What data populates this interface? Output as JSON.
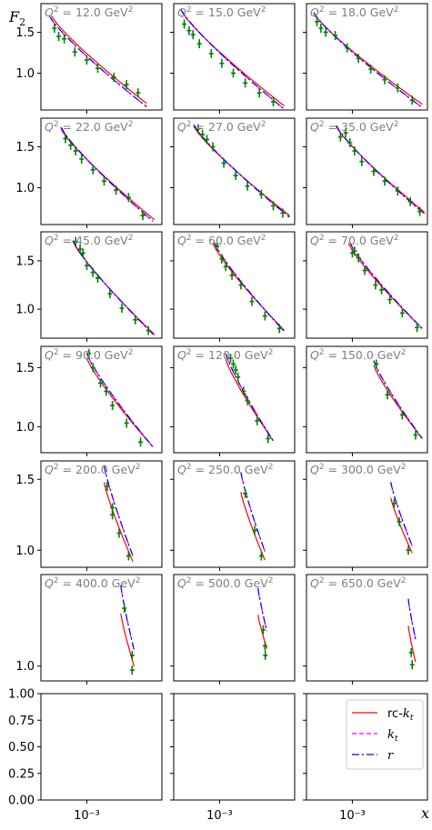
{
  "chart_data": {
    "type": "line",
    "ylabel": "F",
    "ylabel_sub": "2",
    "xlabel": "x",
    "x_scale": "log",
    "xlim": [
      0.00014,
      0.025
    ],
    "x_tick_label": "10⁻³",
    "grid": false,
    "legend_position": "lower right panel",
    "legend": [
      {
        "label": "rc-",
        "italic": "k",
        "sub": "t",
        "color": "#ff0000",
        "dash": ""
      },
      {
        "label": "",
        "italic": "k",
        "sub": "t",
        "color": "#ff00ff",
        "dash": "5,3"
      },
      {
        "label": "",
        "italic": "r",
        "sub": "",
        "color": "#0000ff",
        "dash": "8,3,2,3"
      }
    ],
    "empty_panel_yticks": [
      "0.00",
      "0.25",
      "0.50",
      "0.75",
      "1.00"
    ],
    "panels": [
      {
        "q2": "12.0",
        "ylim": [
          0.55,
          1.85
        ],
        "yticks": [
          1.0,
          1.5
        ],
        "data": [
          [
            0.00025,
            1.55
          ],
          [
            0.0003,
            1.45
          ],
          [
            0.00038,
            1.42
          ],
          [
            0.0006,
            1.26
          ],
          [
            0.001,
            1.16
          ],
          [
            0.0016,
            1.06
          ],
          [
            0.0032,
            0.95
          ],
          [
            0.0055,
            0.86
          ],
          [
            0.009,
            0.76
          ]
        ],
        "red": {
          "xs": 0.00022,
          "xe": 0.013,
          "ys": 1.7,
          "ye": 0.63
        },
        "blue": {
          "xs": 0.0002,
          "xe": 0.013,
          "ys": 1.7,
          "ye": 0.59
        }
      },
      {
        "q2": "15.0",
        "ylim": [
          0.55,
          1.85
        ],
        "yticks": [
          1.0,
          1.5
        ],
        "data": [
          [
            0.00022,
            1.6
          ],
          [
            0.00027,
            1.52
          ],
          [
            0.00032,
            1.47
          ],
          [
            0.00042,
            1.36
          ],
          [
            0.0007,
            1.24
          ],
          [
            0.0011,
            1.12
          ],
          [
            0.0018,
            1.0
          ],
          [
            0.003,
            0.88
          ],
          [
            0.0055,
            0.76
          ],
          [
            0.01,
            0.65
          ]
        ],
        "red": {
          "xs": 0.0002,
          "xe": 0.016,
          "ys": 1.75,
          "ye": 0.6
        },
        "blue": {
          "xs": 0.00019,
          "xe": 0.016,
          "ys": 1.78,
          "ye": 0.56
        }
      },
      {
        "q2": "18.0",
        "ylim": [
          0.55,
          1.85
        ],
        "yticks": [
          1.0,
          1.5
        ],
        "data": [
          [
            0.00022,
            1.63
          ],
          [
            0.00026,
            1.55
          ],
          [
            0.00032,
            1.5
          ],
          [
            0.00048,
            1.46
          ],
          [
            0.0008,
            1.31
          ],
          [
            0.0013,
            1.18
          ],
          [
            0.0022,
            1.05
          ],
          [
            0.004,
            0.92
          ],
          [
            0.007,
            0.82
          ],
          [
            0.013,
            0.67
          ]
        ],
        "red": {
          "xs": 0.0002,
          "xe": 0.02,
          "ys": 1.72,
          "ye": 0.62
        },
        "blue": {
          "xs": 0.00019,
          "xe": 0.02,
          "ys": 1.74,
          "ye": 0.58
        }
      },
      {
        "q2": "22.0",
        "ylim": [
          0.55,
          1.85
        ],
        "yticks": [
          1.0,
          1.5
        ],
        "data": [
          [
            0.0004,
            1.6
          ],
          [
            0.0005,
            1.52
          ],
          [
            0.00062,
            1.45
          ],
          [
            0.0008,
            1.35
          ],
          [
            0.0013,
            1.22
          ],
          [
            0.0021,
            1.08
          ],
          [
            0.0035,
            0.97
          ],
          [
            0.006,
            0.88
          ],
          [
            0.011,
            0.66
          ]
        ],
        "red": {
          "xs": 0.00033,
          "xe": 0.018,
          "ys": 1.72,
          "ye": 0.61
        },
        "blue": {
          "xs": 0.00033,
          "xe": 0.017,
          "ys": 1.74,
          "ye": 0.59
        }
      },
      {
        "q2": "27.0",
        "ylim": [
          0.55,
          1.85
        ],
        "yticks": [
          1.0,
          1.5
        ],
        "data": [
          [
            0.0004,
            1.72
          ],
          [
            0.00048,
            1.65
          ],
          [
            0.00058,
            1.59
          ],
          [
            0.00075,
            1.5
          ],
          [
            0.0012,
            1.3
          ],
          [
            0.002,
            1.15
          ],
          [
            0.0033,
            1.02
          ],
          [
            0.006,
            0.92
          ],
          [
            0.01,
            0.78
          ],
          [
            0.015,
            0.69
          ]
        ],
        "red": {
          "xs": 0.00033,
          "xe": 0.02,
          "ys": 1.75,
          "ye": 0.66
        },
        "blue": {
          "xs": 0.00033,
          "xe": 0.02,
          "ys": 1.77,
          "ye": 0.64
        }
      },
      {
        "q2": "35.0",
        "ylim": [
          0.55,
          1.85
        ],
        "yticks": [
          1.0,
          1.5
        ],
        "data": [
          [
            0.0006,
            1.62
          ],
          [
            0.00075,
            1.67
          ],
          [
            0.0009,
            1.55
          ],
          [
            0.0011,
            1.45
          ],
          [
            0.0015,
            1.32
          ],
          [
            0.0025,
            1.2
          ],
          [
            0.004,
            1.08
          ],
          [
            0.007,
            0.96
          ],
          [
            0.012,
            0.83
          ],
          [
            0.018,
            0.71
          ]
        ],
        "red": {
          "xs": 0.0005,
          "xe": 0.022,
          "ys": 1.75,
          "ye": 0.7
        },
        "blue": {
          "xs": 0.0005,
          "xe": 0.022,
          "ys": 1.76,
          "ye": 0.68
        }
      },
      {
        "q2": "45.0",
        "ylim": [
          0.7,
          1.8
        ],
        "yticks": [
          1.0,
          1.5
        ],
        "data": [
          [
            0.00062,
            1.7
          ],
          [
            0.00075,
            1.62
          ],
          [
            0.00085,
            1.58
          ],
          [
            0.001,
            1.45
          ],
          [
            0.0013,
            1.38
          ],
          [
            0.0016,
            1.32
          ],
          [
            0.0027,
            1.16
          ],
          [
            0.0045,
            1.01
          ],
          [
            0.008,
            0.89
          ],
          [
            0.014,
            0.78
          ]
        ],
        "red": {
          "xs": 0.00055,
          "xe": 0.018,
          "ys": 1.7,
          "ye": 0.74
        },
        "blue": {
          "xs": 0.00055,
          "xe": 0.018,
          "ys": 1.71,
          "ye": 0.73
        }
      },
      {
        "q2": "60.0",
        "ylim": [
          0.7,
          1.8
        ],
        "yticks": [
          1.0,
          1.5
        ],
        "data": [
          [
            0.0009,
            1.65
          ],
          [
            0.0011,
            1.52
          ],
          [
            0.0013,
            1.44
          ],
          [
            0.0017,
            1.35
          ],
          [
            0.0025,
            1.25
          ],
          [
            0.004,
            1.08
          ],
          [
            0.007,
            0.93
          ],
          [
            0.013,
            0.8
          ]
        ],
        "red": {
          "xs": 0.00075,
          "xe": 0.016,
          "ys": 1.68,
          "ye": 0.78
        },
        "blue": {
          "xs": 0.00078,
          "xe": 0.016,
          "ys": 1.7,
          "ye": 0.77
        }
      },
      {
        "q2": "70.0",
        "ylim": [
          0.7,
          1.8
        ],
        "yticks": [
          1.0,
          1.5
        ],
        "data": [
          [
            0.001,
            1.58
          ],
          [
            0.0011,
            1.6
          ],
          [
            0.0013,
            1.53
          ],
          [
            0.0017,
            1.4
          ],
          [
            0.0027,
            1.25
          ],
          [
            0.0035,
            1.2
          ],
          [
            0.005,
            1.1
          ],
          [
            0.0085,
            0.96
          ],
          [
            0.016,
            0.81
          ]
        ],
        "red": {
          "xs": 0.00085,
          "xe": 0.02,
          "ys": 1.68,
          "ye": 0.8
        },
        "blue": {
          "xs": 0.00088,
          "xe": 0.02,
          "ys": 1.7,
          "ye": 0.8
        }
      },
      {
        "q2": "90.0",
        "ylim": [
          0.78,
          1.68
        ],
        "yticks": [
          1.0,
          1.5
        ],
        "data": [
          [
            0.0011,
            1.62
          ],
          [
            0.0013,
            1.5
          ],
          [
            0.0018,
            1.37
          ],
          [
            0.0023,
            1.3
          ],
          [
            0.003,
            1.18
          ],
          [
            0.0055,
            1.03
          ],
          [
            0.01,
            0.87
          ]
        ],
        "red": {
          "xs": 0.001,
          "xe": 0.017,
          "ys": 1.58,
          "ye": 0.83
        },
        "blue": {
          "xs": 0.001,
          "xe": 0.017,
          "ys": 1.62,
          "ye": 0.83
        }
      },
      {
        "q2": "120.0",
        "ylim": [
          0.78,
          1.68
        ],
        "yticks": [
          1.0,
          1.5
        ],
        "data": [
          [
            0.0016,
            1.58
          ],
          [
            0.0018,
            1.53
          ],
          [
            0.002,
            1.48
          ],
          [
            0.0022,
            1.42
          ],
          [
            0.0028,
            1.3
          ],
          [
            0.0033,
            1.22
          ],
          [
            0.005,
            1.05
          ],
          [
            0.008,
            0.9
          ]
        ],
        "red": {
          "xs": 0.0013,
          "xe": 0.01,
          "ys": 1.57,
          "ye": 0.88
        },
        "blue": {
          "xs": 0.0013,
          "xe": 0.01,
          "ys": 1.62,
          "ye": 0.88
        }
      },
      {
        "q2": "150.0",
        "ylim": [
          0.78,
          1.68
        ],
        "yticks": [
          1.0,
          1.5
        ],
        "data": [
          [
            0.0028,
            1.53
          ],
          [
            0.0045,
            1.27
          ],
          [
            0.0085,
            1.1
          ],
          [
            0.015,
            0.93
          ]
        ],
        "red": {
          "xs": 0.0025,
          "xe": 0.02,
          "ys": 1.52,
          "ye": 0.9
        },
        "blue": {
          "xs": 0.0025,
          "xe": 0.02,
          "ys": 1.56,
          "ye": 0.9
        }
      },
      {
        "q2": "200.0",
        "ylim": [
          0.88,
          1.63
        ],
        "yticks": [
          1.0,
          1.5
        ],
        "data": [
          [
            0.0024,
            1.45
          ],
          [
            0.003,
            1.25
          ],
          [
            0.003,
            1.3
          ],
          [
            0.004,
            1.12
          ],
          [
            0.006,
            0.96
          ]
        ],
        "red": {
          "xs": 0.0021,
          "xe": 0.0072,
          "ys": 1.48,
          "ye": 0.92
        },
        "blue": {
          "xs": 0.0021,
          "xe": 0.0072,
          "ys": 1.6,
          "ye": 0.96
        }
      },
      {
        "q2": "250.0",
        "ylim": [
          0.88,
          1.63
        ],
        "yticks": [
          1.0,
          1.5
        ],
        "data": [
          [
            0.003,
            1.4
          ],
          [
            0.0045,
            1.14
          ],
          [
            0.006,
            0.96
          ]
        ],
        "red": {
          "xs": 0.0025,
          "xe": 0.007,
          "ys": 1.41,
          "ye": 0.93
        },
        "blue": {
          "xs": 0.0025,
          "xe": 0.007,
          "ys": 1.55,
          "ye": 0.99
        }
      },
      {
        "q2": "300.0",
        "ylim": [
          0.88,
          1.63
        ],
        "yticks": [
          1.0,
          1.5
        ],
        "data": [
          [
            0.006,
            1.33
          ],
          [
            0.0075,
            1.2
          ],
          [
            0.011,
            1.0
          ]
        ],
        "red": {
          "xs": 0.0052,
          "xe": 0.013,
          "ys": 1.37,
          "ye": 0.98
        },
        "blue": {
          "xs": 0.0052,
          "xe": 0.013,
          "ys": 1.48,
          "ye": 1.03
        }
      },
      {
        "q2": "400.0",
        "ylim": [
          0.89,
          1.68
        ],
        "yticks": [
          1.0
        ],
        "data": [
          [
            0.005,
            1.43
          ],
          [
            0.007,
            1.08
          ],
          [
            0.007,
            0.97
          ]
        ],
        "red": {
          "xs": 0.0043,
          "xe": 0.0076,
          "ys": 1.39,
          "ye": 1.0
        },
        "blue": {
          "xs": 0.0043,
          "xe": 0.0076,
          "ys": 1.6,
          "ye": 1.12
        }
      },
      {
        "q2": "500.0",
        "ylim": [
          0.89,
          1.68
        ],
        "yticks": [
          1.0
        ],
        "data": [
          [
            0.0065,
            1.27
          ],
          [
            0.007,
            1.15
          ],
          [
            0.0071,
            1.08
          ]
        ],
        "red": {
          "xs": 0.0052,
          "xe": 0.0076,
          "ys": 1.38,
          "ye": 1.13
        },
        "blue": {
          "xs": 0.0052,
          "xe": 0.0076,
          "ys": 1.58,
          "ye": 1.26
        }
      },
      {
        "q2": "650.0",
        "ylim": [
          0.89,
          1.68
        ],
        "yticks": [
          1.0
        ],
        "data": [
          [
            0.0125,
            1.1
          ],
          [
            0.013,
            1.01
          ]
        ],
        "red": {
          "xs": 0.011,
          "xe": 0.015,
          "ys": 1.3,
          "ye": 1.03
        },
        "blue": {
          "xs": 0.011,
          "xe": 0.015,
          "ys": 1.5,
          "ye": 1.2
        }
      }
    ]
  }
}
